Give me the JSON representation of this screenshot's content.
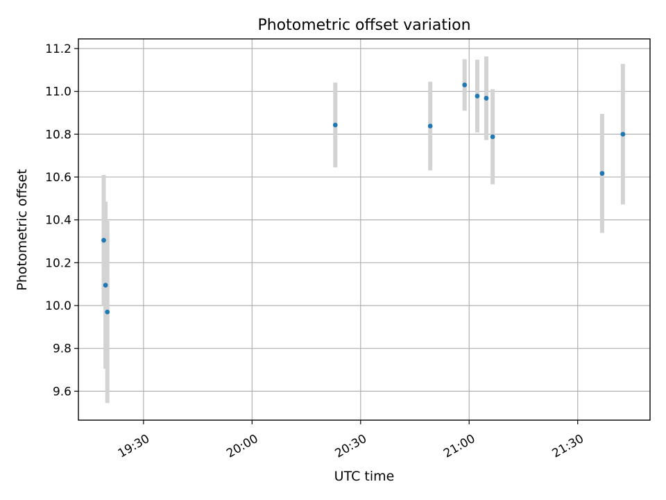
{
  "chart_data": {
    "type": "scatter",
    "title": "Photometric offset variation",
    "xlabel": "UTC time",
    "ylabel": "Photometric offset",
    "x_ticks": [
      "19:30",
      "20:00",
      "20:30",
      "21:00",
      "21:30"
    ],
    "y_ticks": [
      "9.6",
      "9.8",
      "10.0",
      "10.2",
      "10.4",
      "10.6",
      "10.8",
      "11.0",
      "11.2"
    ],
    "xlim": [
      "19:12",
      "21:50"
    ],
    "ylim": [
      9.465,
      11.245
    ],
    "grid": true,
    "colors": {
      "marker": "#1f77b4",
      "errorbar": "#d3d3d3",
      "grid": "#b0b0b0"
    },
    "points": [
      {
        "x": "19:19:00",
        "y": 10.305,
        "yerr": 0.305
      },
      {
        "x": "19:19:30",
        "y": 10.095,
        "yerr": 0.39
      },
      {
        "x": "19:20:00",
        "y": 9.97,
        "yerr": 0.425
      },
      {
        "x": "20:23:00",
        "y": 10.843,
        "yerr": 0.198
      },
      {
        "x": "20:49:15",
        "y": 10.838,
        "yerr": 0.207
      },
      {
        "x": "20:58:45",
        "y": 11.03,
        "yerr": 0.12
      },
      {
        "x": "21:02:15",
        "y": 10.978,
        "yerr": 0.17
      },
      {
        "x": "21:04:45",
        "y": 10.968,
        "yerr": 0.195
      },
      {
        "x": "21:06:30",
        "y": 10.788,
        "yerr": 0.222
      },
      {
        "x": "21:36:45",
        "y": 10.617,
        "yerr": 0.278
      },
      {
        "x": "21:42:30",
        "y": 10.8,
        "yerr": 0.328
      }
    ]
  }
}
